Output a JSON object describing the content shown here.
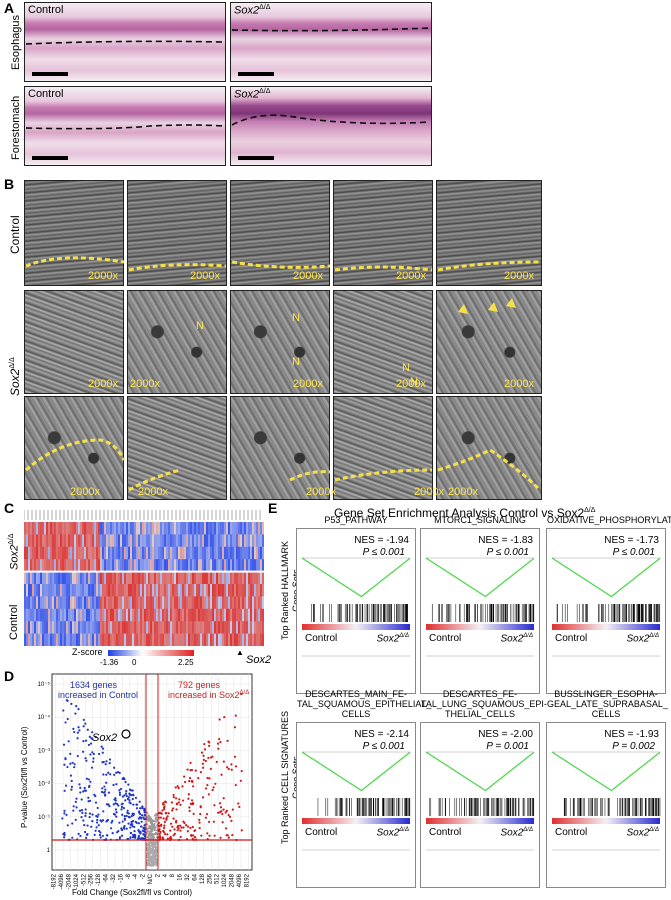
{
  "panelA": {
    "label": "A",
    "control": "Control",
    "mutant": "Sox2",
    "mutant_sup": "Δ/Δ",
    "rows": [
      "Esophagus",
      "Forestomach"
    ]
  },
  "panelB": {
    "label": "B",
    "control": "Control",
    "mutant": "Sox2",
    "mutant_sup": "Δ/Δ",
    "mag": "2000x",
    "n": "N"
  },
  "panelC": {
    "label": "C",
    "rows": [
      "Sox2",
      "Control"
    ],
    "mutant_sup": "Δ/Δ",
    "zscore_label": "Z-score",
    "zscore_min": "-1.36",
    "zscore_mid": "0",
    "zscore_max": "2.25",
    "gene": "Sox2"
  },
  "panelD": {
    "label": "D",
    "left_count": "1634 genes",
    "left_text": "increased in Control",
    "right_count": "792 genes",
    "right_text": "increased in Sox2",
    "mutant_sup": "Δ/Δ",
    "gene": "Sox2",
    "ylabel": "P-value (Sox2fl/fl vs Control)",
    "xlabel": "Fold Change (Sox2fl/fl vs Control)",
    "yticks": [
      "1",
      "10⁻¹",
      "10⁻²",
      "10⁻³",
      "10⁻⁴",
      "10⁻⁵"
    ],
    "xticks": [
      "-8192",
      "-4096",
      "-2048",
      "-1024",
      "-512",
      "-256",
      "-128",
      "-64",
      "-32",
      "-16",
      "-8",
      "-4",
      "-2",
      "N/C",
      "2",
      "4",
      "8",
      "16",
      "32",
      "64",
      "128",
      "256",
      "512",
      "1024",
      "2048",
      "4096",
      "8192"
    ]
  },
  "panelE": {
    "label": "E",
    "title": "Gene Set Enrichment Analysis Control vs Sox2",
    "mutant_sup": "Δ/Δ",
    "row1_label": "Top Ranked HALLMARK",
    "row1_label2": "Gene Sets",
    "row2_label": "Top Ranked CELL SIGNATURES",
    "row2_label2": "Gene Sets",
    "control": "Control",
    "mutant": "Sox2",
    "plots": [
      {
        "name": "P53_PATHWAY",
        "nes": "NES = -1.94",
        "p": "P ≤ 0.001"
      },
      {
        "name": "MTORC1_SIGNALING",
        "nes": "NES = -1.83",
        "p": "P ≤ 0.001"
      },
      {
        "name": "OXIDATIVE_PHOSPHORYLATION",
        "nes": "NES = -1.73",
        "p": "P ≤ 0.001"
      },
      {
        "name": "DESCARTES_MAIN_FE-\nTAL_SQUAMOUS_EPITHELIAL_\nCELLS",
        "nes": "NES = -2.14",
        "p": "P ≤ 0.001"
      },
      {
        "name": "DESCARTES_FE-\nTAL_LUNG_SQUAMOUS_EPI-\nTHELIAL_CELLS",
        "nes": "NES = -2.00",
        "p": "P = 0.001"
      },
      {
        "name": "BUSSLINGER_ESOPHA-\nGEAL_LATE_SUPRABASAL_\nCELLS",
        "nes": "NES = -1.93",
        "p": "P = 0.002"
      }
    ]
  }
}
